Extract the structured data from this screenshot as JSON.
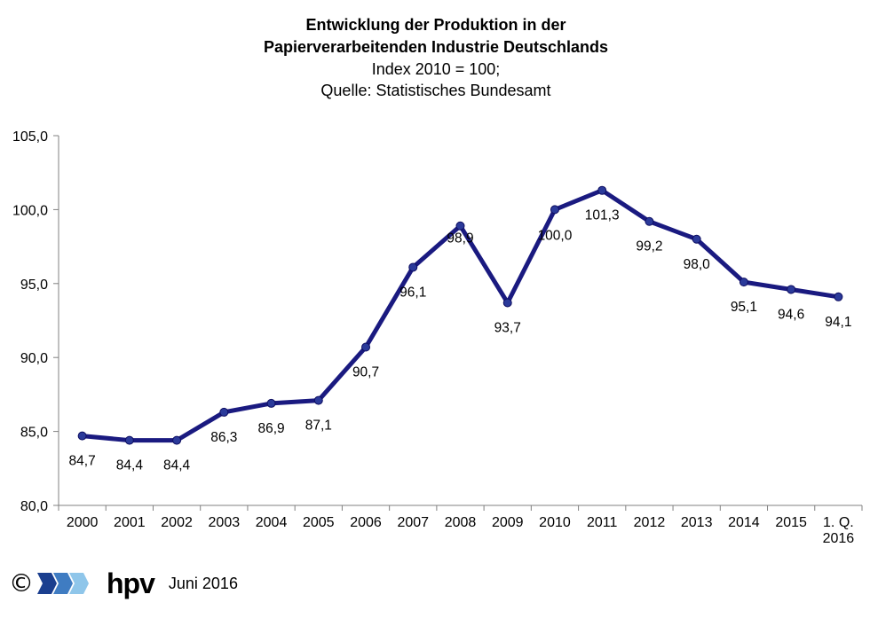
{
  "chart_data": {
    "type": "line",
    "title_lines": [
      "Entwicklung der Produktion in der",
      "Papierverarbeitenden Industrie Deutschlands",
      "Index 2010 = 100;",
      "Quelle: Statistisches Bundesamt"
    ],
    "categories": [
      "2000",
      "2001",
      "2002",
      "2003",
      "2004",
      "2005",
      "2006",
      "2007",
      "2008",
      "2009",
      "2010",
      "2011",
      "2012",
      "2013",
      "2014",
      "2015",
      "1. Q. 2016"
    ],
    "category_lines": [
      [
        "2000"
      ],
      [
        "2001"
      ],
      [
        "2002"
      ],
      [
        "2003"
      ],
      [
        "2004"
      ],
      [
        "2005"
      ],
      [
        "2006"
      ],
      [
        "2007"
      ],
      [
        "2008"
      ],
      [
        "2009"
      ],
      [
        "2010"
      ],
      [
        "2011"
      ],
      [
        "2012"
      ],
      [
        "2013"
      ],
      [
        "2014"
      ],
      [
        "2015"
      ],
      [
        "1. Q.",
        "2016"
      ]
    ],
    "values": [
      84.7,
      84.4,
      84.4,
      86.3,
      86.9,
      87.1,
      90.7,
      96.1,
      98.9,
      93.7,
      100.0,
      101.3,
      99.2,
      98.0,
      95.1,
      94.6,
      94.1
    ],
    "value_labels": [
      "84,7",
      "84,4",
      "84,4",
      "86,3",
      "86,9",
      "87,1",
      "90,7",
      "96,1",
      "98,9",
      "93,7",
      "100,0",
      "101,3",
      "99,2",
      "98,0",
      "95,1",
      "94,6",
      "94,1"
    ],
    "ylim": [
      80,
      105
    ],
    "yticks": [
      80,
      85,
      90,
      95,
      100,
      105
    ],
    "ytick_labels": [
      "80,0",
      "85,0",
      "90,0",
      "95,0",
      "100,0",
      "105,0"
    ],
    "grid": false,
    "legend": "none",
    "line_color": "#1a1a80",
    "marker_color": "#2b3a9a"
  },
  "footer": {
    "copyright": "©",
    "logo_text": "hpv",
    "date": "Juni 2016"
  }
}
